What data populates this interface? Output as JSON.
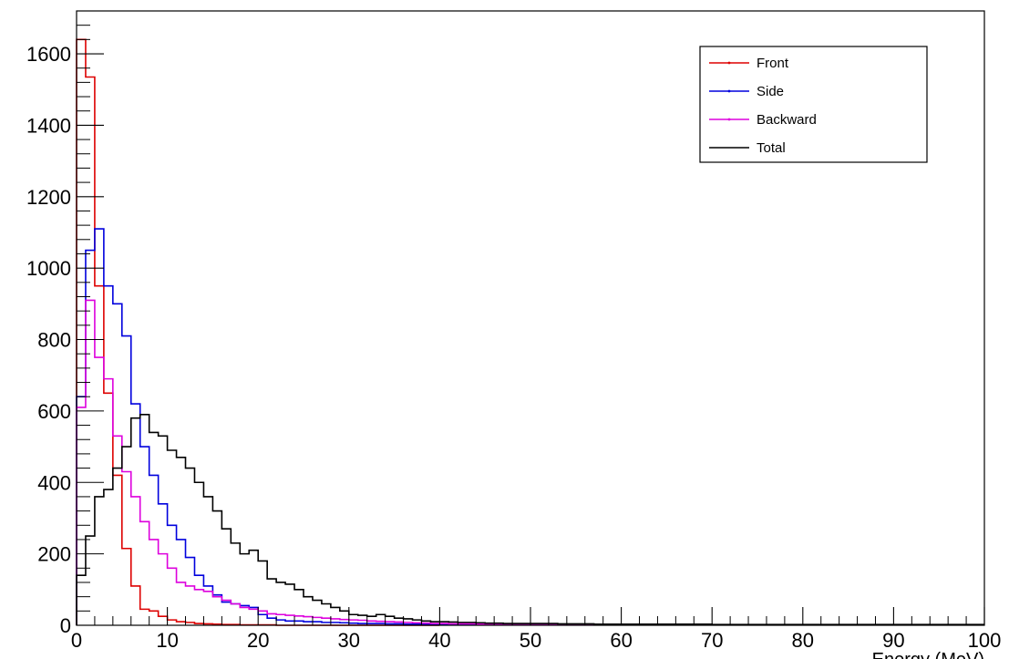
{
  "chart_data": {
    "type": "line",
    "title": "",
    "xlabel": "Energy (MeV)",
    "ylabel": "",
    "xlim": [
      0,
      100
    ],
    "ylim": [
      0,
      1720
    ],
    "x_ticks": [
      0,
      10,
      20,
      30,
      40,
      50,
      60,
      70,
      80,
      90,
      100
    ],
    "y_ticks": [
      0,
      200,
      400,
      600,
      800,
      1000,
      1200,
      1400,
      1600
    ],
    "grid": false,
    "legend_position": "top-right",
    "bin_width": 1,
    "series": [
      {
        "name": "Front",
        "color": "#dd0000",
        "values": [
          1640,
          1535,
          950,
          650,
          420,
          215,
          110,
          45,
          40,
          25,
          15,
          10,
          8,
          5,
          4,
          3,
          2,
          2,
          1,
          1,
          1,
          1,
          0,
          0,
          0,
          0,
          0,
          0,
          0,
          0,
          0,
          0,
          0,
          0,
          0,
          0,
          0,
          0,
          0,
          0
        ]
      },
      {
        "name": "Side",
        "color": "#0000dd",
        "values": [
          640,
          1050,
          1110,
          950,
          900,
          810,
          620,
          500,
          420,
          340,
          280,
          240,
          190,
          140,
          110,
          85,
          65,
          60,
          55,
          50,
          30,
          20,
          15,
          12,
          12,
          10,
          10,
          8,
          8,
          7,
          6,
          5,
          5,
          5,
          4,
          4,
          3,
          3,
          3,
          3,
          2,
          2,
          2,
          2,
          2,
          2,
          2,
          2,
          2,
          2,
          3,
          3,
          2,
          2,
          2,
          2,
          2,
          2,
          2,
          2
        ]
      },
      {
        "name": "Backward",
        "color": "#dd00dd",
        "values": [
          610,
          910,
          750,
          690,
          530,
          430,
          360,
          290,
          240,
          200,
          160,
          120,
          110,
          100,
          95,
          80,
          70,
          60,
          50,
          45,
          40,
          32,
          30,
          28,
          26,
          24,
          22,
          20,
          18,
          16,
          15,
          14,
          12,
          11,
          10,
          9,
          8,
          7,
          6,
          5,
          5,
          4,
          4,
          4,
          3,
          3,
          3,
          3,
          3,
          3,
          3,
          3,
          3,
          3,
          2,
          2,
          2,
          2,
          2,
          2
        ]
      },
      {
        "name": "Total",
        "color": "#000000",
        "values": [
          140,
          250,
          360,
          380,
          440,
          500,
          580,
          590,
          540,
          530,
          490,
          470,
          440,
          400,
          360,
          320,
          270,
          230,
          200,
          210,
          180,
          130,
          120,
          115,
          100,
          80,
          70,
          60,
          50,
          40,
          30,
          28,
          25,
          30,
          25,
          20,
          18,
          15,
          12,
          10,
          10,
          9,
          8,
          8,
          7,
          6,
          6,
          5,
          5,
          5,
          5,
          5,
          5,
          4,
          4,
          4,
          4,
          3,
          3,
          3,
          3,
          3,
          3,
          3,
          3,
          3,
          3,
          3,
          3,
          3,
          2,
          2,
          2,
          2,
          2,
          2,
          2,
          2,
          2,
          2,
          2,
          2,
          2,
          2,
          2,
          2,
          2,
          2,
          2,
          2,
          2,
          2,
          2,
          2,
          2,
          2,
          2,
          2,
          2,
          2
        ]
      }
    ]
  }
}
